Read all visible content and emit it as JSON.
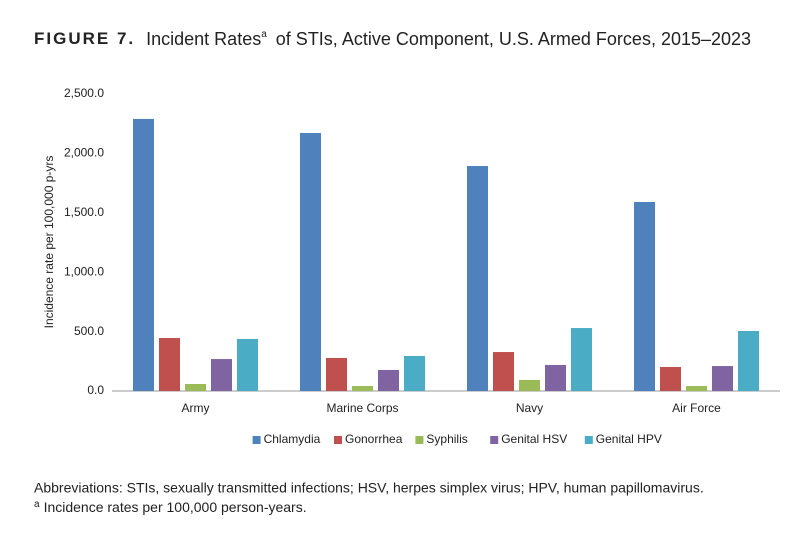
{
  "chart_data": {
    "type": "bar",
    "title_label": "FIGURE 7.",
    "title": "Incident Rates",
    "title_superscript": "a",
    "title_rest": "of STIs, Active Component, U.S. Armed Forces, 2015–2023",
    "y_label": "Incidence rate per 100,000 p-yrs",
    "categories": [
      "Army",
      "Marine Corps",
      "Navy",
      "Air Force"
    ],
    "series": [
      {
        "name": "Chlamydia",
        "color": "#4f81bd",
        "values": [
          2290,
          2172,
          1894,
          1591
        ]
      },
      {
        "name": "Gonorrhea",
        "color": "#c0504d",
        "values": [
          446,
          278,
          328,
          202
        ]
      },
      {
        "name": "Syphilis",
        "color": "#9bbb59",
        "values": [
          59,
          42,
          93,
          42
        ]
      },
      {
        "name": "Genital HSV",
        "color": "#8064a2",
        "values": [
          269,
          177,
          219,
          210
        ]
      },
      {
        "name": "Genital HPV",
        "color": "#4bacc6",
        "values": [
          438,
          295,
          530,
          505
        ]
      }
    ],
    "ylim": [
      0,
      2500
    ],
    "yticks": [
      {
        "value": 0,
        "label": "0.0"
      },
      {
        "value": 500,
        "label": "500.0"
      },
      {
        "value": 1000,
        "label": "1,000.0"
      },
      {
        "value": 1500,
        "label": "1,500.0"
      },
      {
        "value": 2000,
        "label": "2,000.0"
      },
      {
        "value": 2500,
        "label": "2,500.0"
      }
    ],
    "grid": false,
    "legend": "bottom",
    "footnote": "Abbreviations: STIs, sexually transmitted infections; HSV, herpes simplex virus; HPV, human papillomavirus.",
    "footnote2_superscript": "a",
    "footnote2": "Incidence rates per 100,000 person-years."
  }
}
